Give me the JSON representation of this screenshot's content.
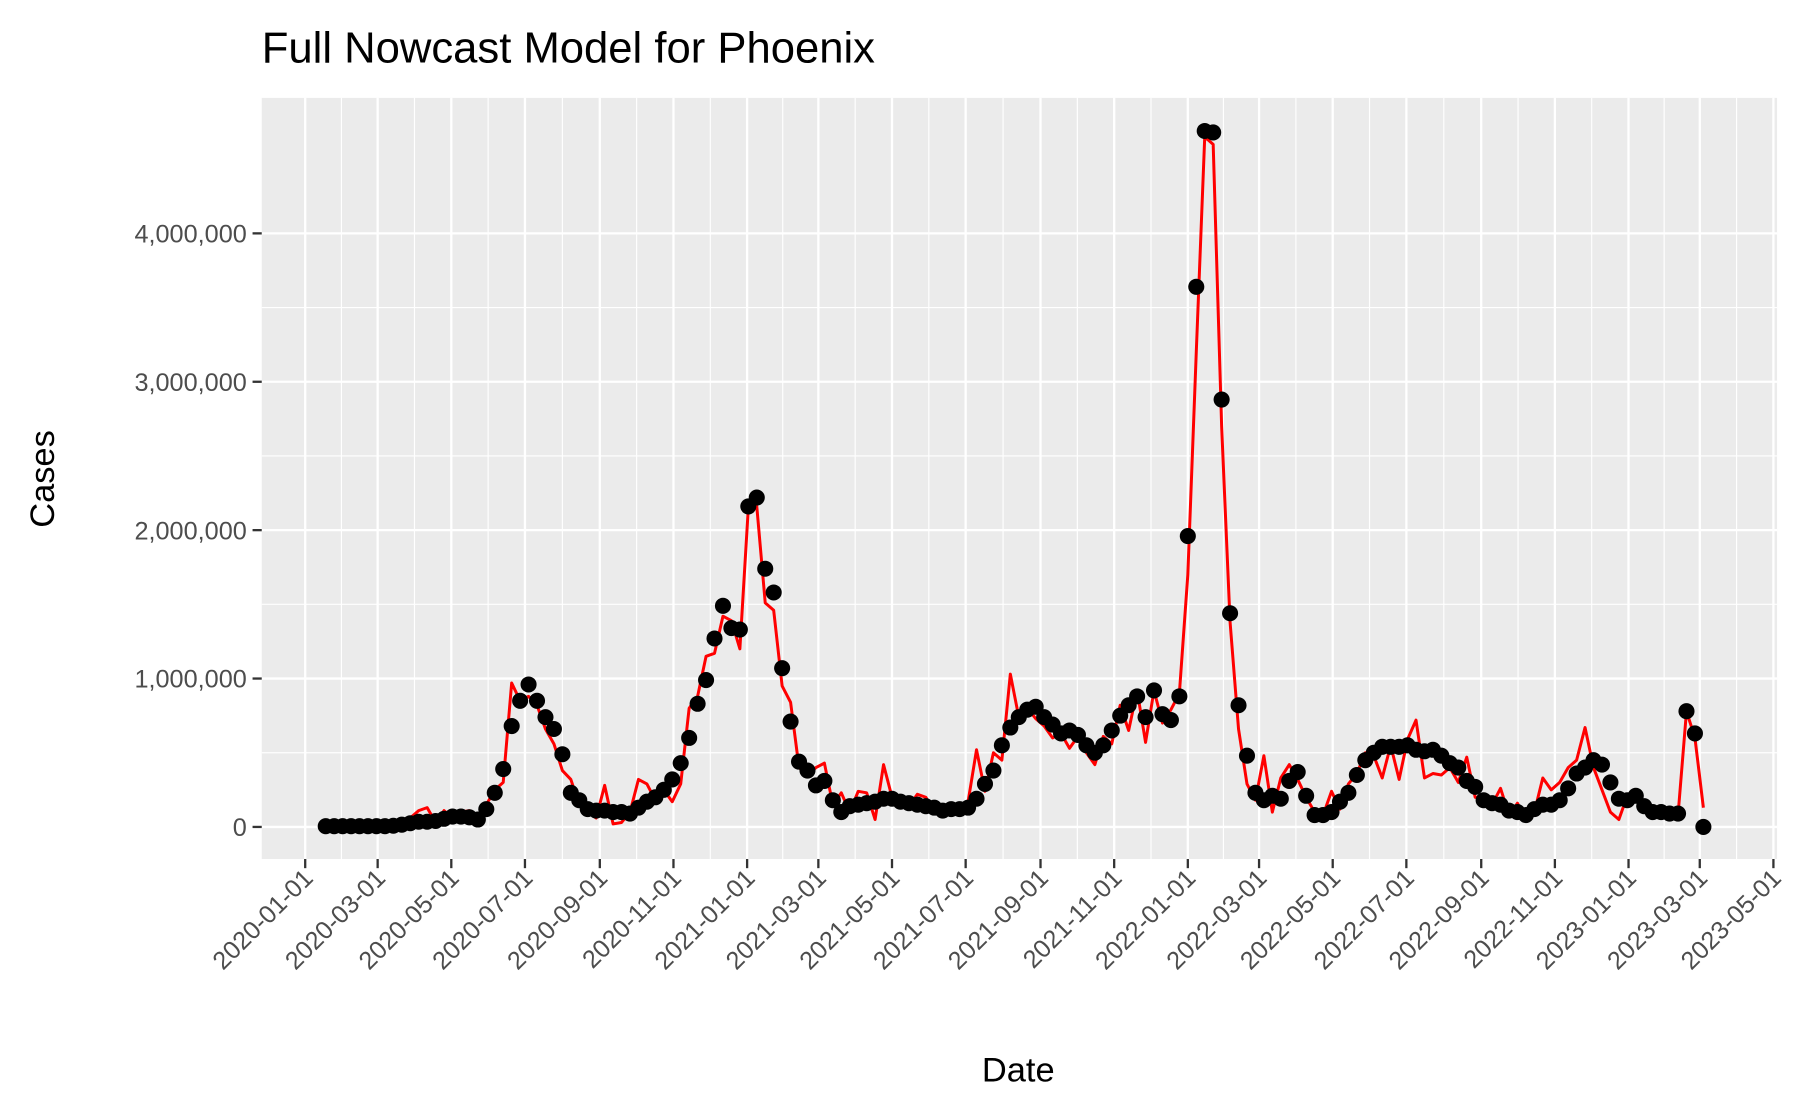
{
  "chart_data": {
    "type": "line",
    "title": "Full Nowcast Model for Phoenix",
    "x_label": "Date",
    "y_label": "Cases",
    "grid": true,
    "xlim": [
      "2019-11-26",
      "2023-05-04"
    ],
    "xticks": [
      "2020-01-01",
      "2020-03-01",
      "2020-05-01",
      "2020-07-01",
      "2020-09-01",
      "2020-11-01",
      "2021-01-01",
      "2021-03-01",
      "2021-05-01",
      "2021-07-01",
      "2021-09-01",
      "2021-11-01",
      "2022-01-01",
      "2022-03-01",
      "2022-05-01",
      "2022-07-01",
      "2022-09-01",
      "2022-11-01",
      "2023-01-01",
      "2023-03-01",
      "2023-05-01"
    ],
    "ylim": [
      -216000,
      4913000
    ],
    "yticks": [
      0,
      {
        "value": 1000000,
        "label": "1,000,000"
      },
      {
        "value": 2000000,
        "label": "2,000,000"
      },
      {
        "value": 3000000,
        "label": "3,000,000"
      },
      {
        "value": 4000000,
        "label": "4,000,000"
      }
    ],
    "x": [
      "2020-01-18",
      "2020-01-25",
      "2020-02-01",
      "2020-02-08",
      "2020-02-15",
      "2020-02-22",
      "2020-02-29",
      "2020-03-07",
      "2020-03-14",
      "2020-03-21",
      "2020-03-28",
      "2020-04-04",
      "2020-04-11",
      "2020-04-18",
      "2020-04-25",
      "2020-05-02",
      "2020-05-09",
      "2020-05-16",
      "2020-05-23",
      "2020-05-30",
      "2020-06-06",
      "2020-06-13",
      "2020-06-20",
      "2020-06-27",
      "2020-07-04",
      "2020-07-11",
      "2020-07-18",
      "2020-07-25",
      "2020-08-01",
      "2020-08-08",
      "2020-08-15",
      "2020-08-22",
      "2020-08-29",
      "2020-09-05",
      "2020-09-12",
      "2020-09-19",
      "2020-09-26",
      "2020-10-03",
      "2020-10-10",
      "2020-10-17",
      "2020-10-24",
      "2020-10-31",
      "2020-11-07",
      "2020-11-14",
      "2020-11-21",
      "2020-11-28",
      "2020-12-05",
      "2020-12-12",
      "2020-12-19",
      "2020-12-26",
      "2021-01-02",
      "2021-01-09",
      "2021-01-16",
      "2021-01-23",
      "2021-01-30",
      "2021-02-06",
      "2021-02-13",
      "2021-02-20",
      "2021-02-27",
      "2021-03-06",
      "2021-03-13",
      "2021-03-20",
      "2021-03-27",
      "2021-04-03",
      "2021-04-10",
      "2021-04-17",
      "2021-04-24",
      "2021-05-01",
      "2021-05-08",
      "2021-05-15",
      "2021-05-22",
      "2021-05-29",
      "2021-06-05",
      "2021-06-12",
      "2021-06-19",
      "2021-06-26",
      "2021-07-03",
      "2021-07-10",
      "2021-07-17",
      "2021-07-24",
      "2021-07-31",
      "2021-08-07",
      "2021-08-14",
      "2021-08-21",
      "2021-08-28",
      "2021-09-04",
      "2021-09-11",
      "2021-09-18",
      "2021-09-25",
      "2021-10-02",
      "2021-10-09",
      "2021-10-16",
      "2021-10-23",
      "2021-10-30",
      "2021-11-06",
      "2021-11-13",
      "2021-11-20",
      "2021-11-27",
      "2021-12-04",
      "2021-12-11",
      "2021-12-18",
      "2021-12-25",
      "2022-01-01",
      "2022-01-08",
      "2022-01-15",
      "2022-01-22",
      "2022-01-29",
      "2022-02-05",
      "2022-02-12",
      "2022-02-19",
      "2022-02-26",
      "2022-03-05",
      "2022-03-12",
      "2022-03-19",
      "2022-03-26",
      "2022-04-02",
      "2022-04-09",
      "2022-04-16",
      "2022-04-23",
      "2022-04-30",
      "2022-05-07",
      "2022-05-14",
      "2022-05-21",
      "2022-05-28",
      "2022-06-04",
      "2022-06-11",
      "2022-06-18",
      "2022-06-25",
      "2022-07-02",
      "2022-07-09",
      "2022-07-16",
      "2022-07-23",
      "2022-07-30",
      "2022-08-06",
      "2022-08-13",
      "2022-08-20",
      "2022-08-27",
      "2022-09-03",
      "2022-09-10",
      "2022-09-17",
      "2022-09-24",
      "2022-10-01",
      "2022-10-08",
      "2022-10-15",
      "2022-10-22",
      "2022-10-29",
      "2022-11-05",
      "2022-11-12",
      "2022-11-19",
      "2022-11-26",
      "2022-12-03",
      "2022-12-10",
      "2022-12-17",
      "2022-12-24",
      "2022-12-31",
      "2023-01-07",
      "2023-01-14",
      "2023-01-21",
      "2023-01-28",
      "2023-02-04",
      "2023-02-11",
      "2023-02-18",
      "2023-02-25",
      "2023-03-04"
    ],
    "series": [
      {
        "color": "#ff0000",
        "style": "line",
        "values": [
          0,
          0,
          0,
          0,
          0,
          0,
          5000,
          5000,
          10000,
          20000,
          60000,
          110000,
          130000,
          30000,
          110000,
          60000,
          100000,
          110000,
          50000,
          150000,
          250000,
          300000,
          970000,
          850000,
          880000,
          820000,
          660000,
          560000,
          380000,
          320000,
          150000,
          100000,
          60000,
          280000,
          20000,
          30000,
          100000,
          320000,
          290000,
          180000,
          250000,
          170000,
          290000,
          800000,
          880000,
          1150000,
          1170000,
          1420000,
          1390000,
          1200000,
          2150000,
          2160000,
          1510000,
          1460000,
          950000,
          840000,
          400000,
          350000,
          400000,
          430000,
          150000,
          230000,
          100000,
          240000,
          230000,
          50000,
          420000,
          200000,
          150000,
          140000,
          220000,
          200000,
          100000,
          130000,
          120000,
          130000,
          170000,
          520000,
          240000,
          500000,
          450000,
          1030000,
          740000,
          800000,
          730000,
          680000,
          600000,
          630000,
          530000,
          610000,
          500000,
          420000,
          610000,
          560000,
          820000,
          650000,
          920000,
          570000,
          920000,
          700000,
          790000,
          900000,
          1700000,
          3200000,
          4650000,
          4600000,
          2700000,
          1380000,
          660000,
          290000,
          180000,
          480000,
          100000,
          330000,
          420000,
          320000,
          200000,
          100000,
          80000,
          240000,
          120000,
          290000,
          360000,
          500000,
          480000,
          330000,
          550000,
          320000,
          590000,
          720000,
          330000,
          360000,
          350000,
          400000,
          300000,
          470000,
          200000,
          190000,
          150000,
          260000,
          80000,
          160000,
          50000,
          100000,
          330000,
          250000,
          300000,
          400000,
          450000,
          670000,
          400000,
          250000,
          100000,
          50000,
          210000,
          200000,
          180000,
          80000,
          110000,
          90000,
          80000,
          780000,
          600000,
          130000
        ]
      },
      {
        "color": "#000000",
        "style": "points",
        "values": [
          5000,
          5000,
          5000,
          5000,
          5000,
          5000,
          5000,
          5000,
          8000,
          15000,
          25000,
          35000,
          35000,
          40000,
          55000,
          70000,
          70000,
          65000,
          50000,
          120000,
          230000,
          390000,
          680000,
          850000,
          960000,
          850000,
          740000,
          660000,
          490000,
          230000,
          180000,
          120000,
          110000,
          110000,
          100000,
          100000,
          90000,
          130000,
          170000,
          200000,
          250000,
          320000,
          430000,
          600000,
          830000,
          990000,
          1270000,
          1490000,
          1340000,
          1330000,
          2160000,
          2220000,
          1740000,
          1580000,
          1070000,
          710000,
          440000,
          380000,
          280000,
          310000,
          180000,
          100000,
          140000,
          150000,
          160000,
          170000,
          190000,
          190000,
          170000,
          160000,
          150000,
          140000,
          130000,
          110000,
          120000,
          120000,
          130000,
          190000,
          290000,
          380000,
          550000,
          670000,
          740000,
          790000,
          810000,
          740000,
          690000,
          630000,
          650000,
          620000,
          550000,
          500000,
          550000,
          650000,
          750000,
          820000,
          880000,
          740000,
          920000,
          760000,
          720000,
          880000,
          1960000,
          3640000,
          4690000,
          4680000,
          2880000,
          1440000,
          820000,
          480000,
          230000,
          180000,
          210000,
          190000,
          310000,
          370000,
          210000,
          80000,
          80000,
          100000,
          170000,
          230000,
          350000,
          450000,
          500000,
          540000,
          540000,
          540000,
          550000,
          520000,
          510000,
          520000,
          480000,
          430000,
          400000,
          310000,
          270000,
          180000,
          160000,
          150000,
          110000,
          100000,
          80000,
          120000,
          150000,
          150000,
          180000,
          260000,
          360000,
          400000,
          450000,
          420000,
          300000,
          190000,
          180000,
          210000,
          140000,
          100000,
          100000,
          90000,
          90000,
          780000,
          630000,
          0
        ]
      }
    ]
  }
}
